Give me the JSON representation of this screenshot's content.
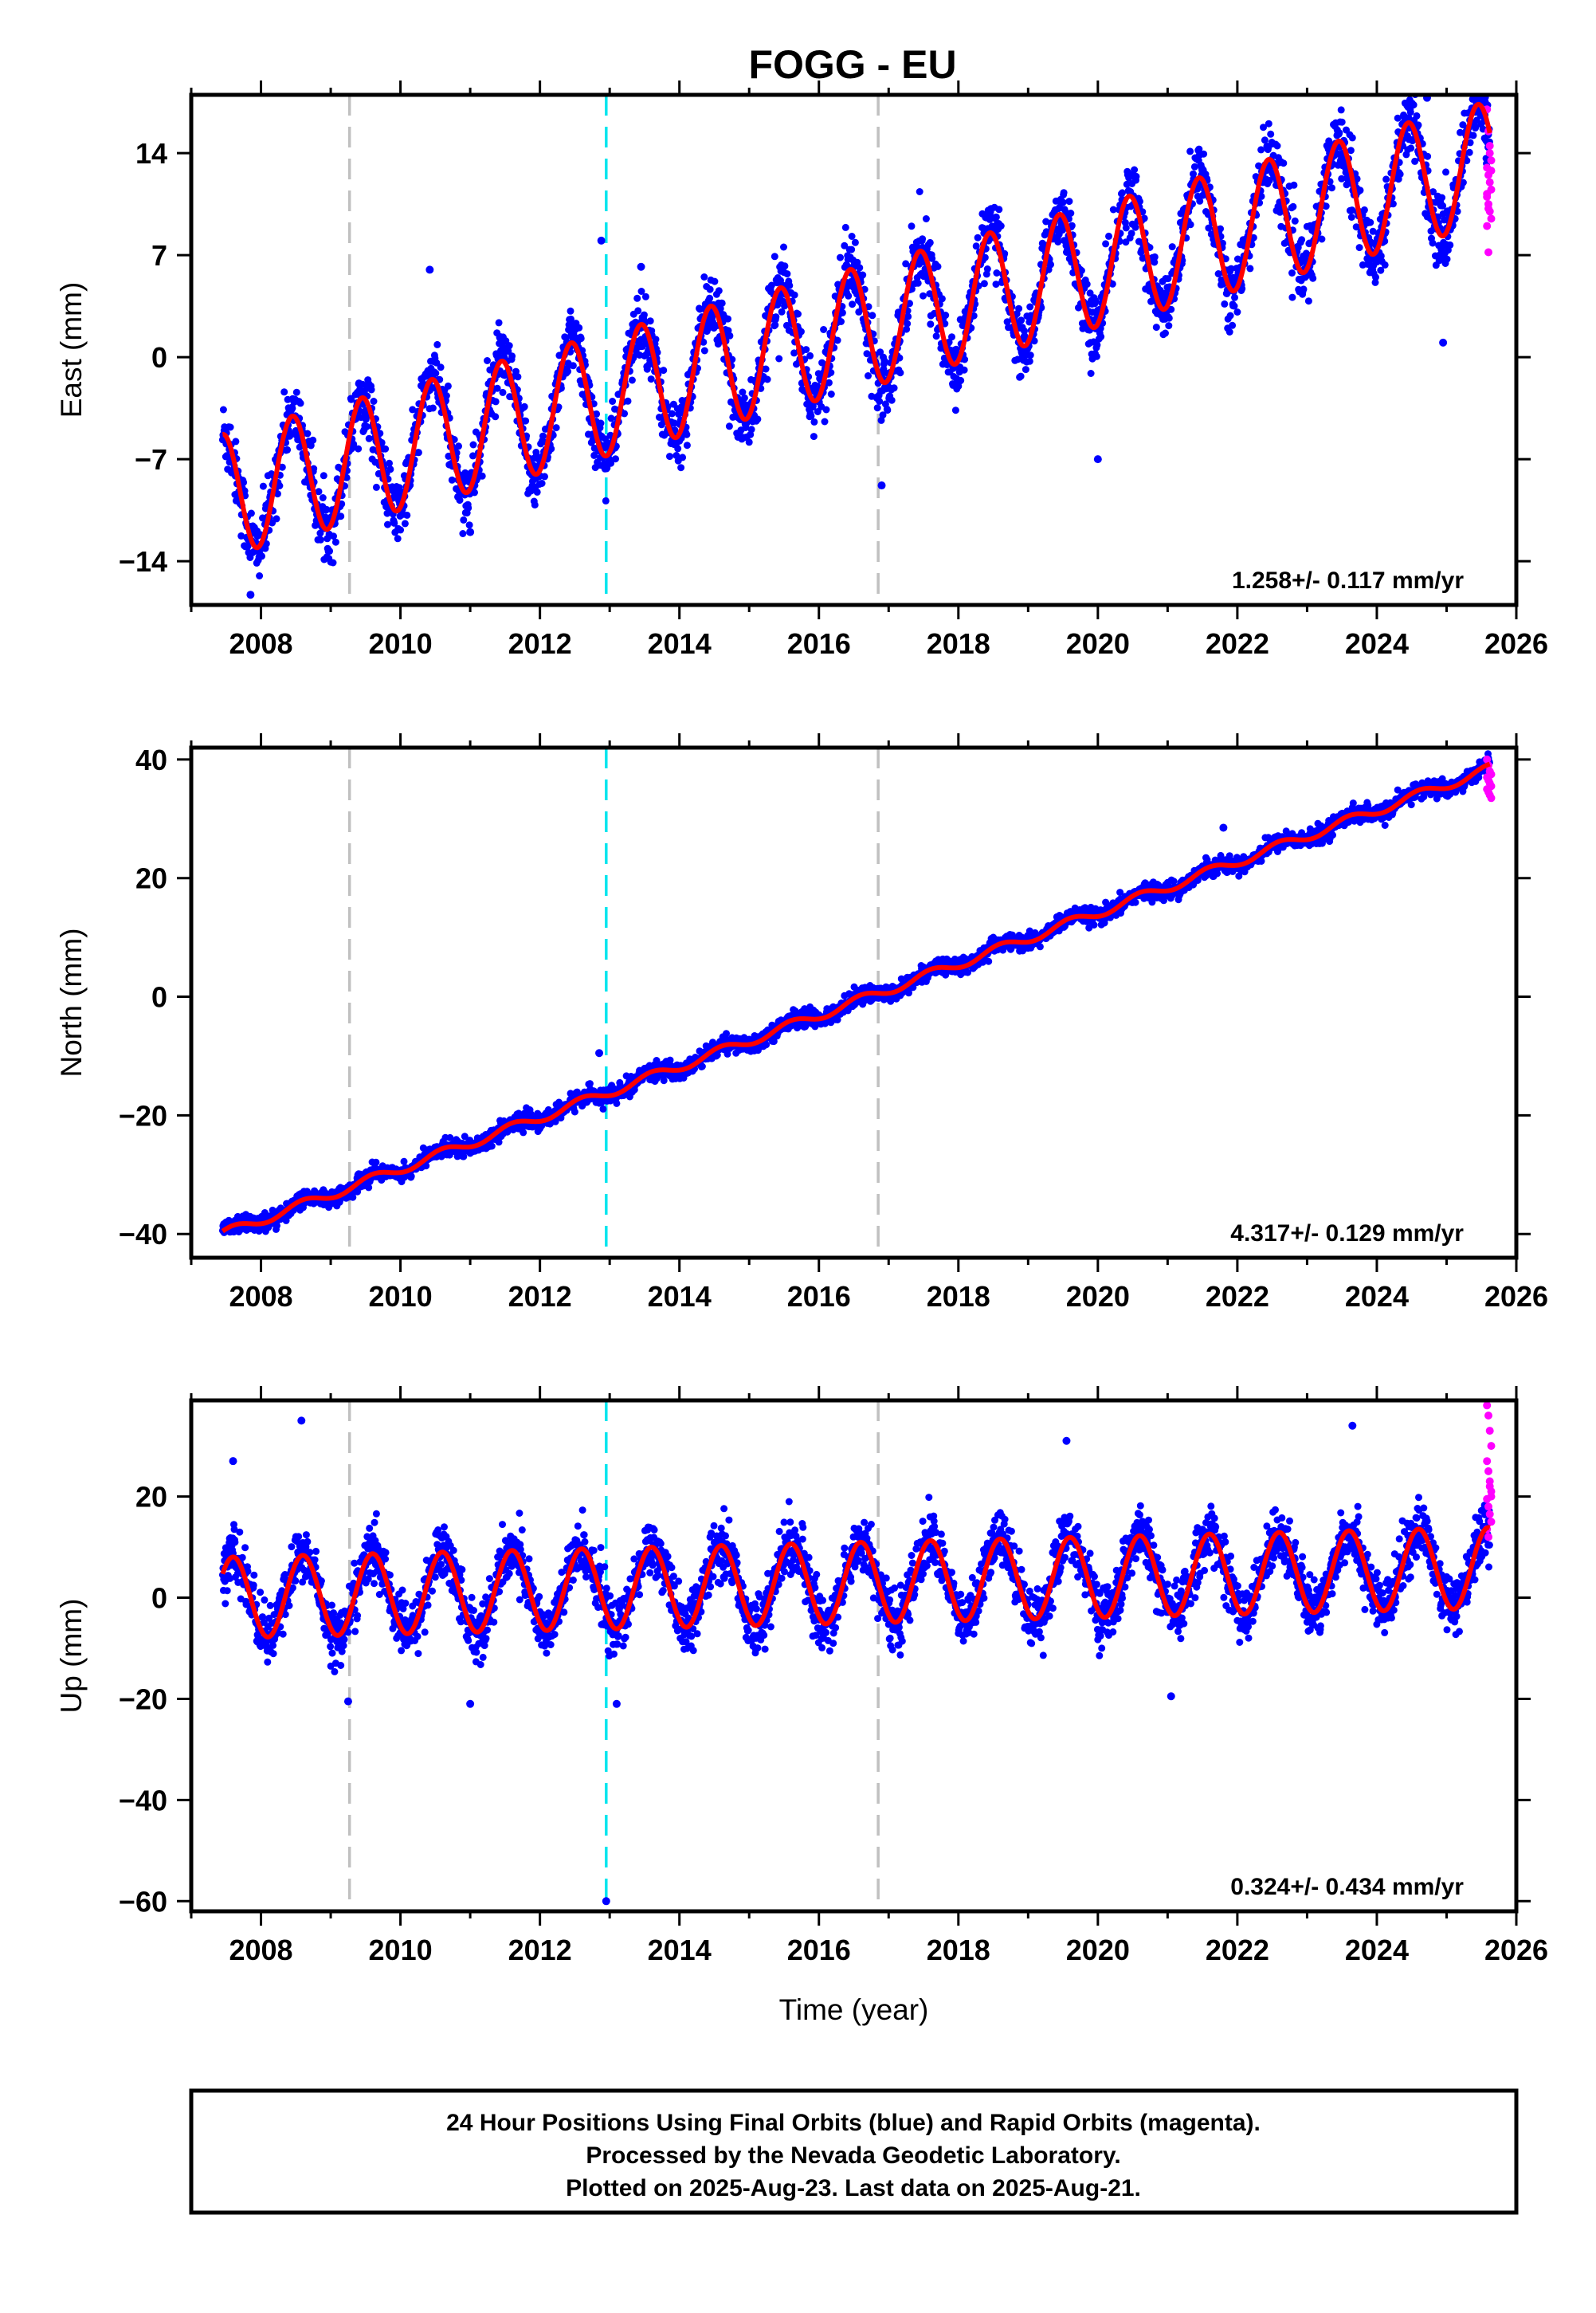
{
  "title": "FOGG - EU",
  "footer": {
    "line1": "24 Hour Positions Using Final Orbits (blue) and Rapid Orbits (magenta).",
    "line2": "Processed by the Nevada Geodetic Laboratory.",
    "line3": "Plotted on 2025-Aug-23. Last data on 2025-Aug-21."
  },
  "colors": {
    "final_orbits": "#0000ff",
    "rapid_orbits": "#ff00ff",
    "model": "#ff0000",
    "offset_line": "#c0c0c0",
    "earthquake_line": "#00e5ee"
  },
  "chart_data": [
    {
      "type": "scatter",
      "panel": "east",
      "ylabel": "East (mm)",
      "xlabel": "",
      "xlim": [
        2007.0,
        2026.0
      ],
      "ylim": [
        -17.0,
        18.0
      ],
      "xticks": [
        "2008",
        "2010",
        "2012",
        "2014",
        "2016",
        "2018",
        "2020",
        "2022",
        "2024",
        "2026"
      ],
      "yticks": [
        "14",
        "7",
        "0",
        "-7",
        "-14"
      ],
      "rate_label": "1.258+/- 0.117 mm/yr",
      "model": {
        "start": 2007.45,
        "end": 2025.62,
        "value_at_start": -9.5,
        "rate": 1.258,
        "annual_amplitude": 4.2,
        "peak_phase": 0.45
      },
      "vertical_lines": [
        {
          "x": 2009.27,
          "kind": "offset"
        },
        {
          "x": 2012.95,
          "kind": "earthquake"
        },
        {
          "x": 2016.85,
          "kind": "offset"
        }
      ],
      "outliers": [
        [
          2010.42,
          6.0
        ],
        [
          2012.88,
          8.0
        ],
        [
          2013.45,
          6.2
        ],
        [
          2024.72,
          17.8
        ],
        [
          2025.55,
          17.5
        ],
        [
          2020.0,
          -7.0
        ],
        [
          2016.9,
          -8.8
        ],
        [
          2011.0,
          -12.0
        ],
        [
          2007.85,
          -16.3
        ],
        [
          2024.95,
          1.0
        ]
      ],
      "rapid": {
        "x_start": 2025.58,
        "x_end": 2025.64,
        "values": [
          17,
          15.5,
          14,
          13.5,
          13,
          12.5,
          12,
          11.5,
          11,
          10.5,
          10,
          9.5,
          9,
          7.2,
          14.5,
          12.8,
          11.2,
          10.2
        ]
      }
    },
    {
      "type": "scatter",
      "panel": "north",
      "ylabel": "North (mm)",
      "xlabel": "",
      "xlim": [
        2007.0,
        2026.0
      ],
      "ylim": [
        -44.0,
        42.0
      ],
      "xticks": [
        "2008",
        "2010",
        "2012",
        "2014",
        "2016",
        "2018",
        "2020",
        "2022",
        "2024",
        "2026"
      ],
      "yticks": [
        "40",
        "20",
        "0",
        "-20",
        "-40"
      ],
      "rate_label": "4.317+/- 0.129 mm/yr",
      "model": {
        "start": 2007.45,
        "end": 2025.62,
        "value_at_start": -40.0,
        "rate": 4.317,
        "annual_amplitude": 0.8,
        "peak_phase": 0.6
      },
      "vertical_lines": [
        {
          "x": 2009.27,
          "kind": "offset"
        },
        {
          "x": 2012.95,
          "kind": "earthquake"
        },
        {
          "x": 2016.85,
          "kind": "offset"
        }
      ],
      "outliers": [
        [
          2021.8,
          28.5
        ],
        [
          2012.85,
          -9.5
        ]
      ],
      "rapid": {
        "x_start": 2025.58,
        "x_end": 2025.64,
        "values": [
          40,
          39,
          38,
          37.5,
          37,
          36.5,
          36,
          35.5,
          35,
          34.5,
          34,
          33.5
        ]
      }
    },
    {
      "type": "scatter",
      "panel": "up",
      "ylabel": "Up (mm)",
      "xlabel": "Time (year)",
      "xlim": [
        2007.0,
        2026.0
      ],
      "ylim": [
        -62.0,
        39.0
      ],
      "xticks": [
        "2008",
        "2010",
        "2012",
        "2014",
        "2016",
        "2018",
        "2020",
        "2022",
        "2024",
        "2026"
      ],
      "yticks": [
        "20",
        "0",
        "-20",
        "-40",
        "-60"
      ],
      "rate_label": "0.324+/- 0.434 mm/yr",
      "model": {
        "start": 2007.45,
        "end": 2025.62,
        "value_at_start": 0.0,
        "rate": 0.324,
        "annual_amplitude": 8.0,
        "peak_phase": 0.6
      },
      "vertical_lines": [
        {
          "x": 2009.27,
          "kind": "offset"
        },
        {
          "x": 2012.95,
          "kind": "earthquake"
        },
        {
          "x": 2016.85,
          "kind": "offset"
        }
      ],
      "outliers": [
        [
          2008.58,
          35.0
        ],
        [
          2023.65,
          34.0
        ],
        [
          2019.55,
          31.0
        ],
        [
          2007.6,
          27.0
        ],
        [
          2012.95,
          -60.0
        ],
        [
          2013.1,
          -21.0
        ],
        [
          2009.25,
          -20.5
        ],
        [
          2011.0,
          -21.0
        ],
        [
          2021.05,
          -19.5
        ]
      ],
      "rapid": {
        "x_start": 2025.58,
        "x_end": 2025.64,
        "values": [
          38,
          36,
          33,
          30,
          27,
          25,
          23,
          21,
          19.5,
          18,
          16.5,
          15,
          13.5,
          12,
          22,
          20
        ]
      }
    }
  ]
}
